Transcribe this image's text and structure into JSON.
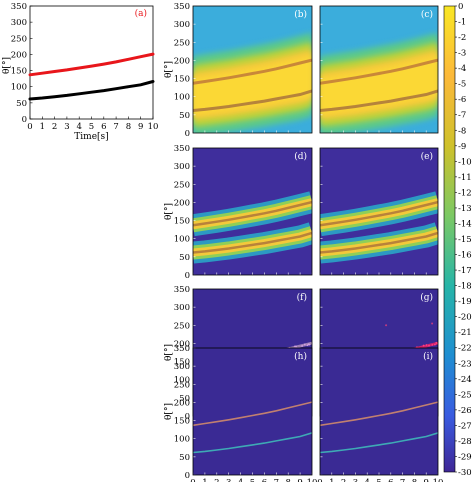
{
  "chart_data": [
    {
      "panel": "(a)",
      "type": "line",
      "xlabel": "Time[s]",
      "ylabel": "θ[°]",
      "xlim": [
        0,
        10
      ],
      "ylim": [
        0,
        350
      ],
      "x_ticks": [
        "0",
        "1",
        "2",
        "3",
        "4",
        "5",
        "6",
        "7",
        "8",
        "9",
        "10"
      ],
      "y_ticks": [
        "0",
        "50",
        "100",
        "150",
        "200",
        "250",
        "300",
        "350"
      ],
      "series": [
        {
          "color": "#e8161b",
          "x": [
            0,
            1,
            2,
            3,
            4,
            5,
            6,
            7,
            8,
            9,
            10
          ],
          "values": [
            137,
            142,
            147,
            152,
            158,
            164,
            170,
            177,
            185,
            193,
            201
          ]
        },
        {
          "color": "#000000",
          "x": [
            0,
            1,
            2,
            3,
            4,
            5,
            6,
            7,
            8,
            9,
            10
          ],
          "values": [
            62,
            65,
            69,
            73,
            78,
            83,
            88,
            94,
            100,
            106,
            116
          ]
        }
      ]
    },
    {
      "type": "heatmap",
      "panels": [
        {
          "label": "(b)",
          "style": "spectrum"
        },
        {
          "label": "(c)",
          "style": "spectrum"
        },
        {
          "label": "(d)",
          "style": "sparse_bands"
        },
        {
          "label": "(e)",
          "style": "sparse_bands"
        },
        {
          "label": "(f)",
          "style": "noisy_tracks"
        },
        {
          "label": "(g)",
          "style": "noisy_tracks_red"
        },
        {
          "label": "(h)",
          "style": "thin_tracks"
        },
        {
          "label": "(i)",
          "style": "thin_tracks"
        }
      ],
      "xlabel": "Time[s]",
      "ylabel": "θ[°]",
      "xlim": [
        0,
        10
      ],
      "ylim": [
        0,
        350
      ],
      "x_ticks": [
        "0",
        "1",
        "2",
        "3",
        "4",
        "5",
        "6",
        "7",
        "8",
        "9",
        "10"
      ],
      "y_ticks": [
        "0",
        "50",
        "100",
        "150",
        "200",
        "250",
        "300",
        "350"
      ],
      "colorbar": {
        "range": [
          -30,
          0
        ],
        "ticks": [
          "0",
          "-1",
          "-2",
          "-3",
          "-4",
          "-5",
          "-6",
          "-7",
          "-8",
          "-9",
          "-10",
          "-11",
          "-12",
          "-13",
          "-14",
          "-15",
          "-16",
          "-17",
          "-18",
          "-19",
          "-20",
          "-21",
          "-22",
          "-23",
          "-24",
          "-25",
          "-26",
          "-27",
          "-28",
          "-29",
          "-30"
        ]
      },
      "tracks": {
        "upper": [
          137,
          142,
          147,
          152,
          158,
          164,
          170,
          177,
          185,
          193,
          201
        ],
        "lower": [
          62,
          65,
          69,
          73,
          78,
          83,
          88,
          94,
          100,
          106,
          116
        ]
      }
    }
  ]
}
